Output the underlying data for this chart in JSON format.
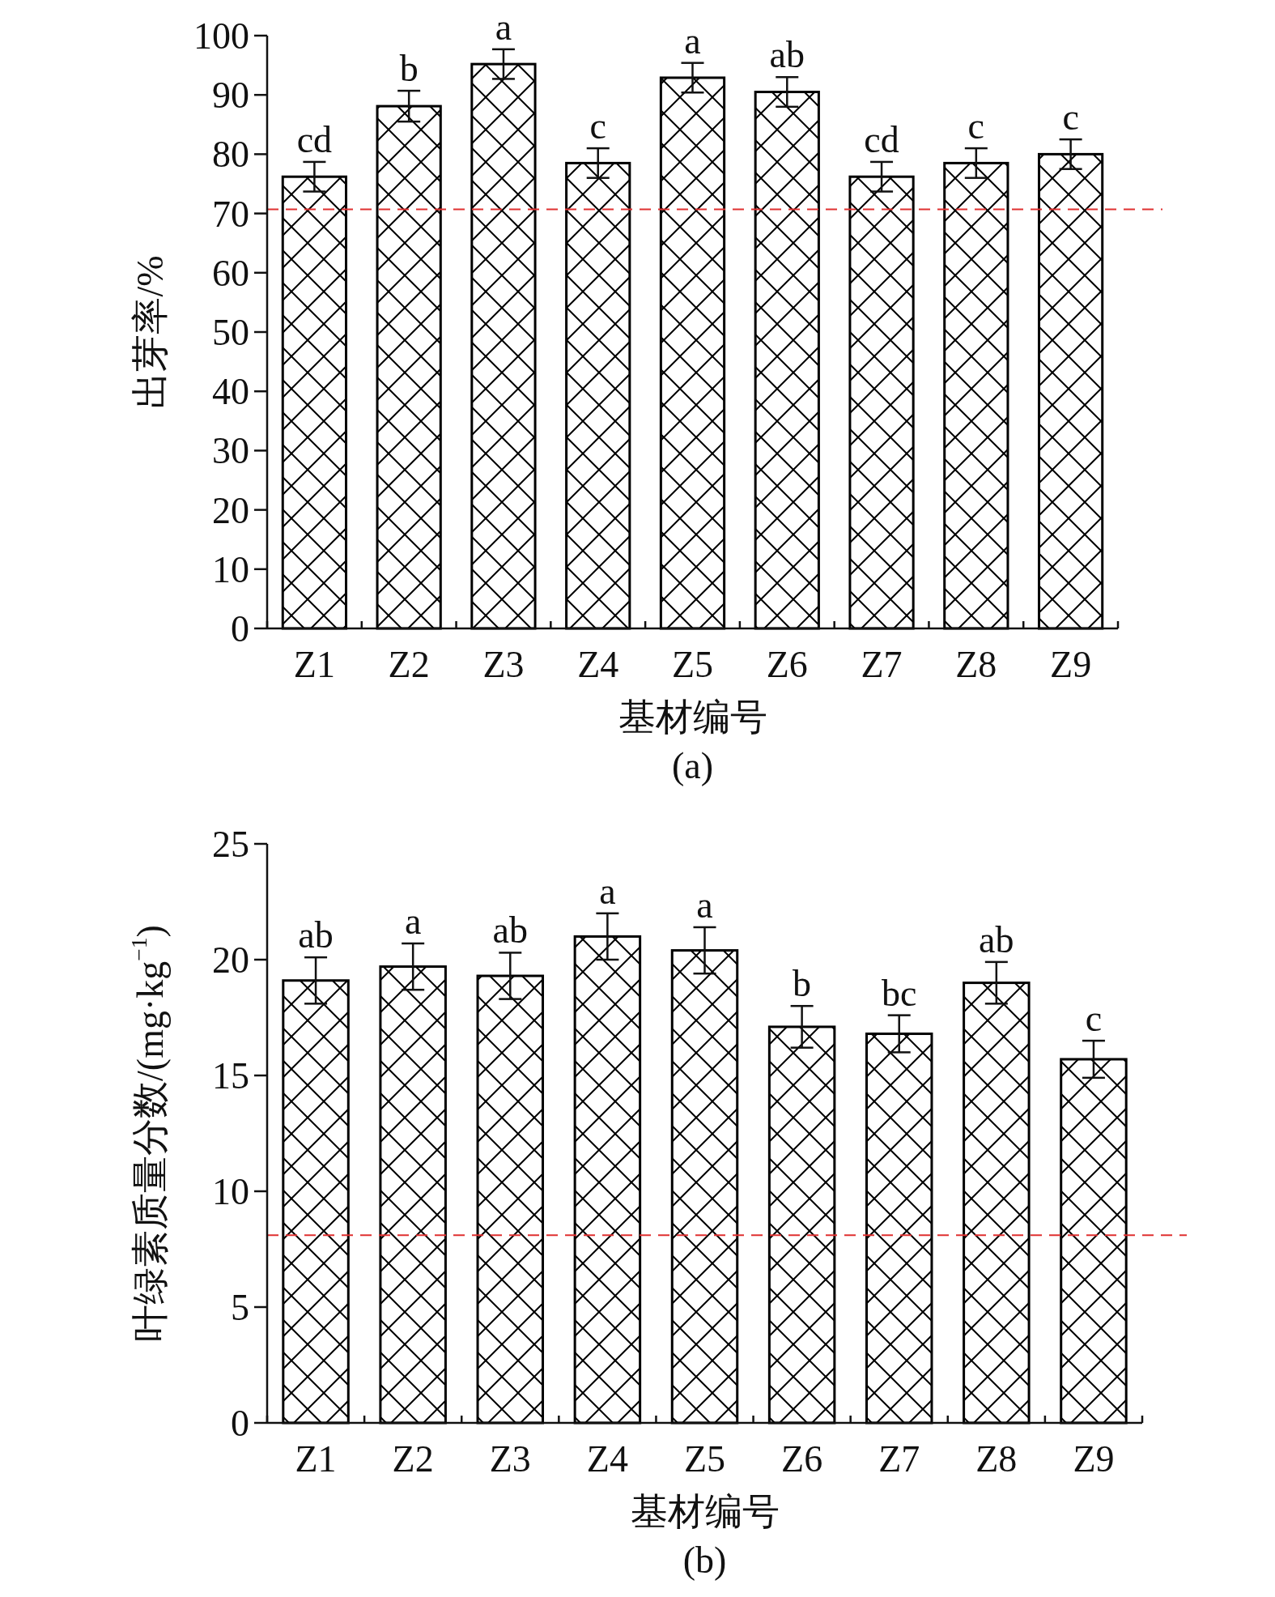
{
  "chart_data": [
    {
      "type": "bar",
      "title": "(a)",
      "xlabel": "基材编号",
      "ylabel": "出芽率/%",
      "categories": [
        "Z1",
        "Z2",
        "Z3",
        "Z4",
        "Z5",
        "Z6",
        "Z7",
        "Z8",
        "Z9"
      ],
      "values": [
        76.2,
        88.1,
        95.2,
        78.5,
        92.9,
        90.5,
        76.2,
        78.5,
        80.0
      ],
      "errors": [
        2.5,
        2.6,
        2.5,
        2.5,
        2.5,
        2.5,
        2.5,
        2.5,
        2.5
      ],
      "value_labels": [
        "cd",
        "b",
        "a",
        "c",
        "a",
        "ab",
        "cd",
        "c",
        "c"
      ],
      "color": "#000000",
      "ylim": [
        0,
        100
      ],
      "yticks": [
        0,
        10,
        20,
        30,
        40,
        50,
        60,
        70,
        80,
        90,
        100
      ],
      "ref_lines": [
        {
          "axis": "y",
          "value": 70.7,
          "color": "#e03030",
          "line_style": "dashed"
        }
      ],
      "grid": false
    },
    {
      "type": "bar",
      "title": "(b)",
      "xlabel": "基材编号",
      "ylabel": "叶绿素质量分数/(mg·kg$^{−1}$)",
      "categories": [
        "Z1",
        "Z2",
        "Z3",
        "Z4",
        "Z5",
        "Z6",
        "Z7",
        "Z8",
        "Z9"
      ],
      "values": [
        19.1,
        19.7,
        19.3,
        21.0,
        20.4,
        17.1,
        16.8,
        19.0,
        15.7
      ],
      "errors": [
        1.0,
        1.0,
        1.0,
        1.0,
        1.0,
        0.9,
        0.8,
        0.9,
        0.8
      ],
      "value_labels": [
        "ab",
        "a",
        "ab",
        "a",
        "a",
        "b",
        "bc",
        "ab",
        "c"
      ],
      "color": "#000000",
      "ylim": [
        0,
        25
      ],
      "yticks": [
        0,
        5,
        10,
        15,
        20,
        25
      ],
      "ref_lines": [
        {
          "axis": "y",
          "value": 8.1,
          "color": "#e03030",
          "line_style": "dashed"
        }
      ],
      "grid": false
    }
  ]
}
